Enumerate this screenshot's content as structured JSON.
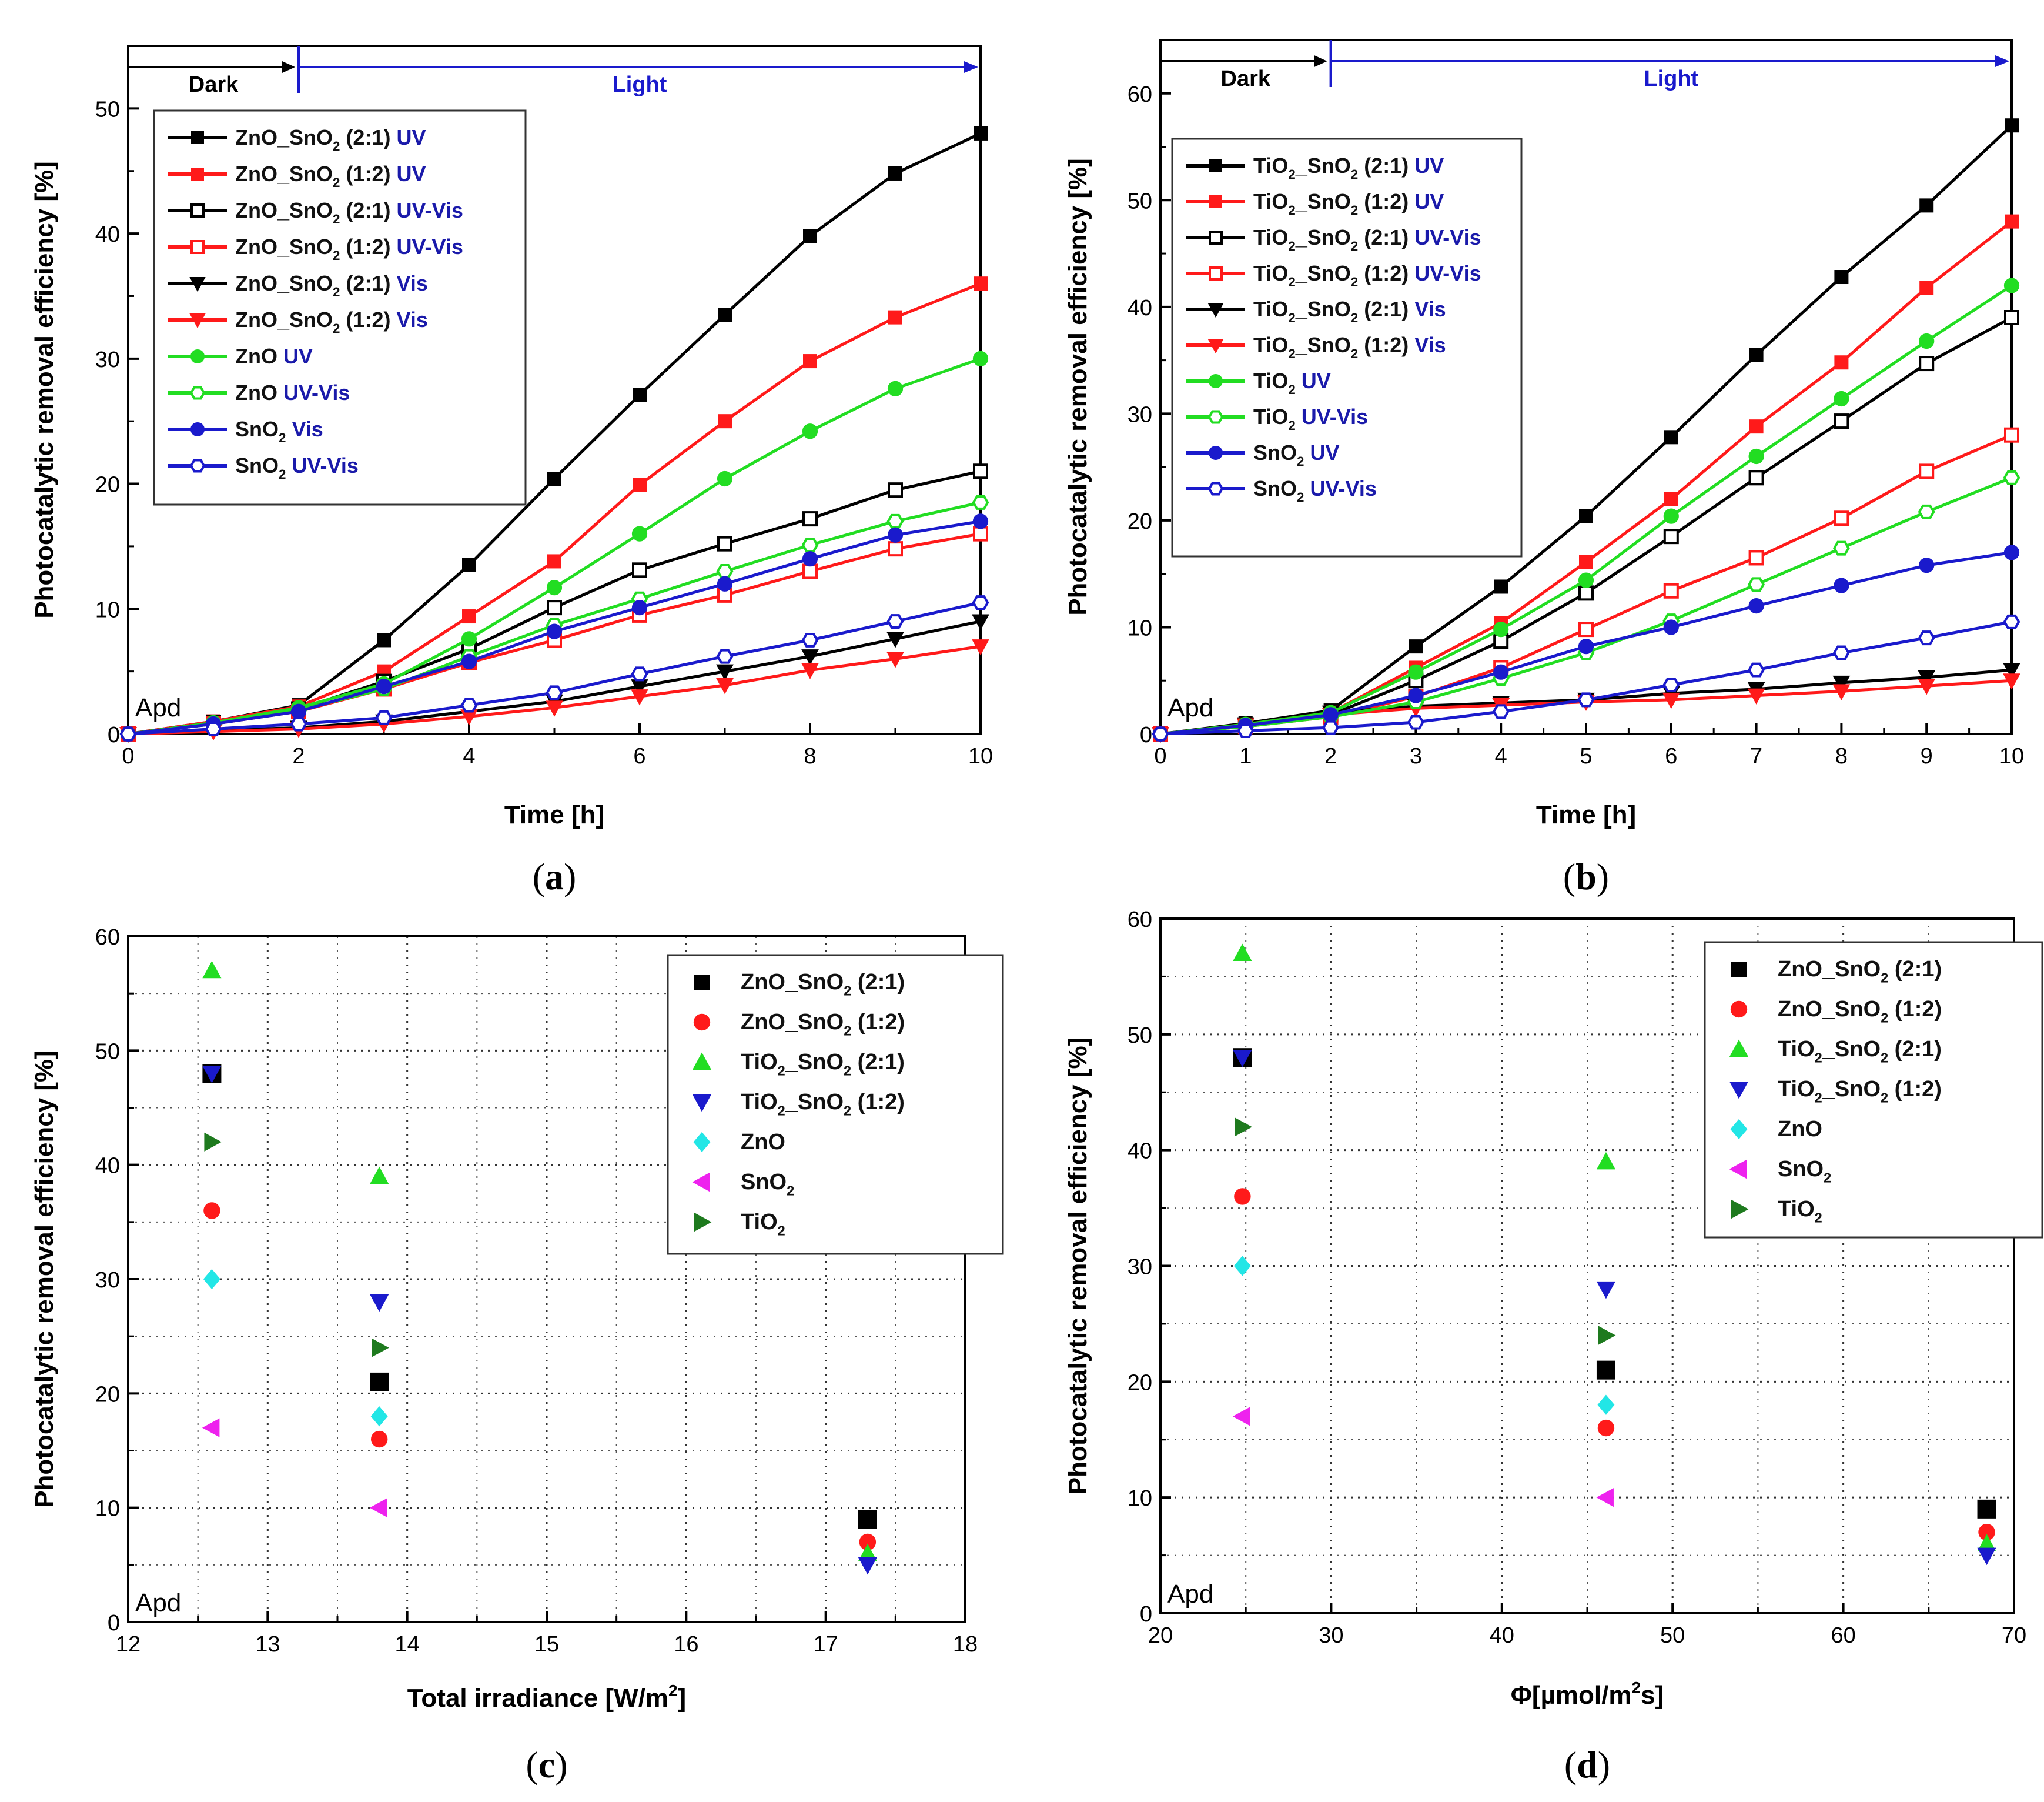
{
  "colors": {
    "black": "#000000",
    "red": "#ff1a1a",
    "green": "#22dd22",
    "blue": "#1a1acc",
    "cyan": "#22e6e6",
    "magenta": "#ee22ee",
    "darkgreen": "#1e7a1e",
    "label_blue": "#1a1aaa"
  },
  "chart_data": [
    {
      "id": "a",
      "type": "line",
      "caption": "(a)",
      "ylabel": "Photocatalytic removal efficiency [%]",
      "xlabel": "Time [h]",
      "xlim": [
        0,
        10
      ],
      "ylim": [
        0,
        55
      ],
      "xticks": [
        0,
        2,
        4,
        6,
        8,
        10
      ],
      "yticks": [
        0,
        10,
        20,
        30,
        40,
        50
      ],
      "phase_labels": {
        "dark": "Dark",
        "light": "Light"
      },
      "phase_x": {
        "dark_start": 0,
        "boundary": 2,
        "light_end": 10
      },
      "corner_label": "Apd",
      "x": [
        0,
        1,
        2,
        3,
        4,
        5,
        6,
        7,
        8,
        9,
        10
      ],
      "series": [
        {
          "name": "ZnO_SnO2 (2:1) UV",
          "label_main": "ZnO_SnO",
          "label_sub": "2",
          "label_ratio": " (2:1)",
          "label_tag": "UV",
          "color": "#000000",
          "marker": "square",
          "filled": true,
          "values": [
            0,
            1.0,
            2.3,
            7.5,
            13.5,
            20.4,
            27.1,
            33.5,
            39.8,
            44.8,
            48.0
          ]
        },
        {
          "name": "ZnO_SnO2 (1:2) UV",
          "label_main": "ZnO_SnO",
          "label_sub": "2",
          "label_ratio": " (1:2)",
          "label_tag": "UV",
          "color": "#ff1a1a",
          "marker": "square",
          "filled": true,
          "values": [
            0,
            1.0,
            2.2,
            5.0,
            9.4,
            13.8,
            19.9,
            25.0,
            29.8,
            33.3,
            36.0
          ]
        },
        {
          "name": "ZnO_SnO2 (2:1) UV-Vis",
          "label_main": "ZnO_SnO",
          "label_sub": "2",
          "label_ratio": " (2:1)",
          "label_tag": "UV-Vis",
          "color": "#000000",
          "marker": "square",
          "filled": false,
          "values": [
            0,
            0.9,
            2.0,
            4.2,
            6.8,
            10.1,
            13.1,
            15.2,
            17.2,
            19.5,
            21.0
          ]
        },
        {
          "name": "ZnO_SnO2 (1:2) UV-Vis",
          "label_main": "ZnO_SnO",
          "label_sub": "2",
          "label_ratio": " (1:2)",
          "label_tag": "UV-Vis",
          "color": "#ff1a1a",
          "marker": "square",
          "filled": false,
          "values": [
            0,
            0.8,
            1.8,
            3.6,
            5.7,
            7.5,
            9.5,
            11.1,
            13.0,
            14.8,
            16.0
          ]
        },
        {
          "name": "ZnO_SnO2 (2:1) Vis",
          "label_main": "ZnO_SnO",
          "label_sub": "2",
          "label_ratio": " (2:1)",
          "label_tag": "Vis",
          "color": "#000000",
          "marker": "triangle-down",
          "filled": true,
          "values": [
            0,
            0.3,
            0.5,
            1.0,
            1.8,
            2.6,
            3.8,
            5.0,
            6.2,
            7.6,
            9.0
          ]
        },
        {
          "name": "ZnO_SnO2 (1:2) Vis",
          "label_main": "ZnO_SnO",
          "label_sub": "2",
          "label_ratio": " (1:2)",
          "label_tag": "Vis",
          "color": "#ff1a1a",
          "marker": "triangle-down",
          "filled": true,
          "values": [
            0,
            0.2,
            0.4,
            0.8,
            1.4,
            2.1,
            3.0,
            3.9,
            5.1,
            6.0,
            7.0
          ]
        },
        {
          "name": "ZnO UV",
          "label_main": "ZnO",
          "label_sub": "",
          "label_ratio": "",
          "label_tag": "UV",
          "color": "#22dd22",
          "marker": "circle",
          "filled": true,
          "values": [
            0,
            0.9,
            2.1,
            4.0,
            7.6,
            11.7,
            16.0,
            20.4,
            24.2,
            27.6,
            30.0
          ]
        },
        {
          "name": "ZnO UV-Vis",
          "label_main": "ZnO",
          "label_sub": "",
          "label_ratio": "",
          "label_tag": "UV-Vis",
          "color": "#22dd22",
          "marker": "hexagon",
          "filled": false,
          "values": [
            0,
            0.8,
            1.9,
            3.6,
            6.2,
            8.7,
            10.8,
            13.0,
            15.1,
            17.0,
            18.5
          ]
        },
        {
          "name": "SnO2 Vis",
          "label_main": "SnO",
          "label_sub": "2",
          "label_ratio": "",
          "label_tag": "Vis",
          "color": "#1a1acc",
          "marker": "circle",
          "filled": true,
          "values": [
            0,
            0.8,
            1.8,
            3.8,
            5.8,
            8.2,
            10.1,
            12.0,
            14.0,
            15.9,
            17.0
          ]
        },
        {
          "name": "SnO2 UV-Vis",
          "label_main": "SnO",
          "label_sub": "2",
          "label_ratio": "",
          "label_tag": "UV-Vis",
          "color": "#1a1acc",
          "marker": "hexagon",
          "filled": false,
          "values": [
            0,
            0.4,
            0.8,
            1.3,
            2.3,
            3.3,
            4.8,
            6.2,
            7.5,
            9.0,
            10.5
          ]
        }
      ]
    },
    {
      "id": "b",
      "type": "line",
      "caption": "(b)",
      "ylabel": "Photocatalytic removal efficiency [%]",
      "xlabel": "Time [h]",
      "xlim": [
        0,
        10
      ],
      "ylim": [
        0,
        65
      ],
      "xticks": [
        0,
        1,
        2,
        3,
        4,
        5,
        6,
        7,
        8,
        9,
        10
      ],
      "yticks": [
        0,
        10,
        20,
        30,
        40,
        50,
        60
      ],
      "phase_labels": {
        "dark": "Dark",
        "light": "Light"
      },
      "phase_x": {
        "dark_start": 0,
        "boundary": 2,
        "light_end": 10
      },
      "corner_label": "Apd",
      "x": [
        0,
        1,
        2,
        3,
        4,
        5,
        6,
        7,
        8,
        9,
        10
      ],
      "series": [
        {
          "name": "TiO2_SnO2 (2:1) UV",
          "label_main": "TiO",
          "label_sub": "2",
          "label_mid": "_SnO",
          "label_sub2": "2",
          "label_ratio": " (2:1)",
          "label_tag": "UV",
          "color": "#000000",
          "marker": "square",
          "filled": true,
          "values": [
            0,
            1.0,
            2.2,
            8.2,
            13.8,
            20.4,
            27.8,
            35.5,
            42.8,
            49.5,
            57.0
          ]
        },
        {
          "name": "TiO2_SnO2 (1:2) UV",
          "label_main": "TiO",
          "label_sub": "2",
          "label_mid": "_SnO",
          "label_sub2": "2",
          "label_ratio": " (1:2)",
          "label_tag": "UV",
          "color": "#ff1a1a",
          "marker": "square",
          "filled": true,
          "values": [
            0,
            0.9,
            2.0,
            6.2,
            10.4,
            16.1,
            22.0,
            28.8,
            34.8,
            41.8,
            48.0
          ]
        },
        {
          "name": "TiO2_SnO2 (2:1) UV-Vis",
          "label_main": "TiO",
          "label_sub": "2",
          "label_mid": "_SnO",
          "label_sub2": "2",
          "label_ratio": " (2:1)",
          "label_tag": "UV-Vis",
          "color": "#000000",
          "marker": "square",
          "filled": false,
          "values": [
            0,
            0.8,
            1.8,
            5.0,
            8.7,
            13.2,
            18.5,
            24.0,
            29.3,
            34.7,
            39.0
          ]
        },
        {
          "name": "TiO2_SnO2 (1:2) UV-Vis",
          "label_main": "TiO",
          "label_sub": "2",
          "label_mid": "_SnO",
          "label_sub2": "2",
          "label_ratio": " (1:2)",
          "label_tag": "UV-Vis",
          "color": "#ff1a1a",
          "marker": "square",
          "filled": false,
          "values": [
            0,
            0.7,
            1.6,
            3.5,
            6.2,
            9.8,
            13.4,
            16.5,
            20.2,
            24.6,
            28.0
          ]
        },
        {
          "name": "TiO2_SnO2 (2:1) Vis",
          "label_main": "TiO",
          "label_sub": "2",
          "label_mid": "_SnO",
          "label_sub2": "2",
          "label_ratio": " (2:1)",
          "label_tag": "Vis",
          "color": "#000000",
          "marker": "triangle-down",
          "filled": true,
          "values": [
            0,
            0.9,
            2.0,
            2.6,
            2.9,
            3.2,
            3.8,
            4.2,
            4.8,
            5.3,
            6.0
          ]
        },
        {
          "name": "TiO2_SnO2 (1:2) Vis",
          "label_main": "TiO",
          "label_sub": "2",
          "label_mid": "_SnO",
          "label_sub2": "2",
          "label_ratio": " (1:2)",
          "label_tag": "Vis",
          "color": "#ff1a1a",
          "marker": "triangle-down",
          "filled": true,
          "values": [
            0,
            0.8,
            1.8,
            2.4,
            2.7,
            3.0,
            3.2,
            3.6,
            4.0,
            4.5,
            5.0
          ]
        },
        {
          "name": "TiO2 UV",
          "label_main": "TiO",
          "label_sub": "2",
          "label_ratio": "",
          "label_tag": "UV",
          "color": "#22dd22",
          "marker": "circle",
          "filled": true,
          "values": [
            0,
            0.9,
            2.0,
            5.8,
            9.8,
            14.4,
            20.4,
            26.0,
            31.4,
            36.8,
            42.0
          ]
        },
        {
          "name": "TiO2 UV-Vis",
          "label_main": "TiO",
          "label_sub": "2",
          "label_ratio": "",
          "label_tag": "UV-Vis",
          "color": "#22dd22",
          "marker": "hexagon",
          "filled": false,
          "values": [
            0,
            0.7,
            1.6,
            3.0,
            5.2,
            7.6,
            10.6,
            14.0,
            17.4,
            20.8,
            24.0
          ]
        },
        {
          "name": "SnO2 UV",
          "label_main": "SnO",
          "label_sub": "2",
          "label_ratio": "",
          "label_tag": "UV",
          "color": "#1a1acc",
          "marker": "circle",
          "filled": true,
          "values": [
            0,
            0.8,
            1.8,
            3.6,
            5.8,
            8.2,
            10.0,
            12.0,
            13.9,
            15.8,
            17.0
          ]
        },
        {
          "name": "SnO2 UV-Vis",
          "label_main": "SnO",
          "label_sub": "2",
          "label_ratio": "",
          "label_tag": "UV-Vis",
          "color": "#1a1acc",
          "marker": "hexagon",
          "filled": false,
          "values": [
            0,
            0.3,
            0.6,
            1.1,
            2.1,
            3.2,
            4.6,
            6.0,
            7.6,
            9.0,
            10.5
          ]
        }
      ]
    },
    {
      "id": "c",
      "type": "scatter",
      "caption": "(c)",
      "ylabel": "Photocatalytic removal efficiency [%]",
      "xlabel": "Total irradiance [W/m",
      "xlabel_sup": "2",
      "xlabel_end": "]",
      "xlim": [
        12,
        18
      ],
      "ylim": [
        0,
        60
      ],
      "xticks": [
        12,
        13,
        14,
        15,
        16,
        17,
        18
      ],
      "yticks": [
        0,
        10,
        20,
        30,
        40,
        50,
        60
      ],
      "corner_label": "Apd",
      "series": [
        {
          "name": "ZnO_SnO2 (2:1)",
          "label_main": "ZnO_SnO",
          "label_sub": "2",
          "label_ratio": " (2:1)",
          "color": "#000000",
          "marker": "square",
          "x": [
            12.6,
            13.8,
            17.3
          ],
          "y": [
            48,
            21,
            9
          ]
        },
        {
          "name": "ZnO_SnO2 (1:2)",
          "label_main": "ZnO_SnO",
          "label_sub": "2",
          "label_ratio": " (1:2)",
          "color": "#ff1a1a",
          "marker": "circle",
          "x": [
            12.6,
            13.8,
            17.3
          ],
          "y": [
            36,
            16,
            7
          ]
        },
        {
          "name": "TiO2_SnO2 (2:1)",
          "label_main": "TiO",
          "label_sub": "2",
          "label_mid": "_SnO",
          "label_sub2": "2",
          "label_ratio": " (2:1)",
          "color": "#22dd22",
          "marker": "triangle-up",
          "x": [
            12.6,
            13.8,
            17.3
          ],
          "y": [
            57,
            39,
            6
          ]
        },
        {
          "name": "TiO2_SnO2 (1:2)",
          "label_main": "TiO",
          "label_sub": "2",
          "label_mid": "_SnO",
          "label_sub2": "2",
          "label_ratio": " (1:2)",
          "color": "#1a1acc",
          "marker": "triangle-down",
          "x": [
            12.6,
            13.8,
            17.3
          ],
          "y": [
            48,
            28,
            5
          ]
        },
        {
          "name": "ZnO",
          "label_main": "ZnO",
          "label_sub": "",
          "label_ratio": "",
          "color": "#22e6e6",
          "marker": "diamond",
          "x": [
            12.6,
            13.8
          ],
          "y": [
            30,
            18
          ]
        },
        {
          "name": "SnO2",
          "label_main": "SnO",
          "label_sub": "2",
          "label_ratio": "",
          "color": "#ee22ee",
          "marker": "triangle-left",
          "x": [
            12.6,
            13.8
          ],
          "y": [
            17,
            10
          ]
        },
        {
          "name": "TiO2",
          "label_main": "TiO",
          "label_sub": "2",
          "label_ratio": "",
          "color": "#1e7a1e",
          "marker": "triangle-right",
          "x": [
            12.6,
            13.8
          ],
          "y": [
            42,
            24
          ]
        }
      ]
    },
    {
      "id": "d",
      "type": "scatter",
      "caption": "(d)",
      "ylabel": "Photocatalytic removal efficiency [%]",
      "xlabel": "Φ[µmol/m",
      "xlabel_sup": "2",
      "xlabel_end": "s]",
      "xlim": [
        20,
        70
      ],
      "ylim": [
        0,
        60
      ],
      "xticks": [
        20,
        30,
        40,
        50,
        60,
        70
      ],
      "yticks": [
        0,
        10,
        20,
        30,
        40,
        50,
        60
      ],
      "corner_label": "Apd",
      "series": [
        {
          "name": "ZnO_SnO2 (2:1)",
          "label_main": "ZnO_SnO",
          "label_sub": "2",
          "label_ratio": " (2:1)",
          "color": "#000000",
          "marker": "square",
          "x": [
            24.8,
            46.1,
            68.4
          ],
          "y": [
            48,
            21,
            9
          ]
        },
        {
          "name": "ZnO_SnO2 (1:2)",
          "label_main": "ZnO_SnO",
          "label_sub": "2",
          "label_ratio": " (1:2)",
          "color": "#ff1a1a",
          "marker": "circle",
          "x": [
            24.8,
            46.1,
            68.4
          ],
          "y": [
            36,
            16,
            7
          ]
        },
        {
          "name": "TiO2_SnO2 (2:1)",
          "label_main": "TiO",
          "label_sub": "2",
          "label_mid": "_SnO",
          "label_sub2": "2",
          "label_ratio": " (2:1)",
          "color": "#22dd22",
          "marker": "triangle-up",
          "x": [
            24.8,
            46.1,
            68.4
          ],
          "y": [
            57,
            39,
            6
          ]
        },
        {
          "name": "TiO2_SnO2 (1:2)",
          "label_main": "TiO",
          "label_sub": "2",
          "label_mid": "_SnO",
          "label_sub2": "2",
          "label_ratio": " (1:2)",
          "color": "#1a1acc",
          "marker": "triangle-down",
          "x": [
            24.8,
            46.1,
            68.4
          ],
          "y": [
            48,
            28,
            5
          ]
        },
        {
          "name": "ZnO",
          "label_main": "ZnO",
          "label_sub": "",
          "label_ratio": "",
          "color": "#22e6e6",
          "marker": "diamond",
          "x": [
            24.8,
            46.1
          ],
          "y": [
            30,
            18
          ]
        },
        {
          "name": "SnO2",
          "label_main": "SnO",
          "label_sub": "2",
          "label_ratio": "",
          "color": "#ee22ee",
          "marker": "triangle-left",
          "x": [
            24.8,
            46.1
          ],
          "y": [
            17,
            10
          ]
        },
        {
          "name": "TiO2",
          "label_main": "TiO",
          "label_sub": "2",
          "label_ratio": "",
          "color": "#1e7a1e",
          "marker": "triangle-right",
          "x": [
            24.8,
            46.1
          ],
          "y": [
            42,
            24
          ]
        }
      ]
    }
  ]
}
